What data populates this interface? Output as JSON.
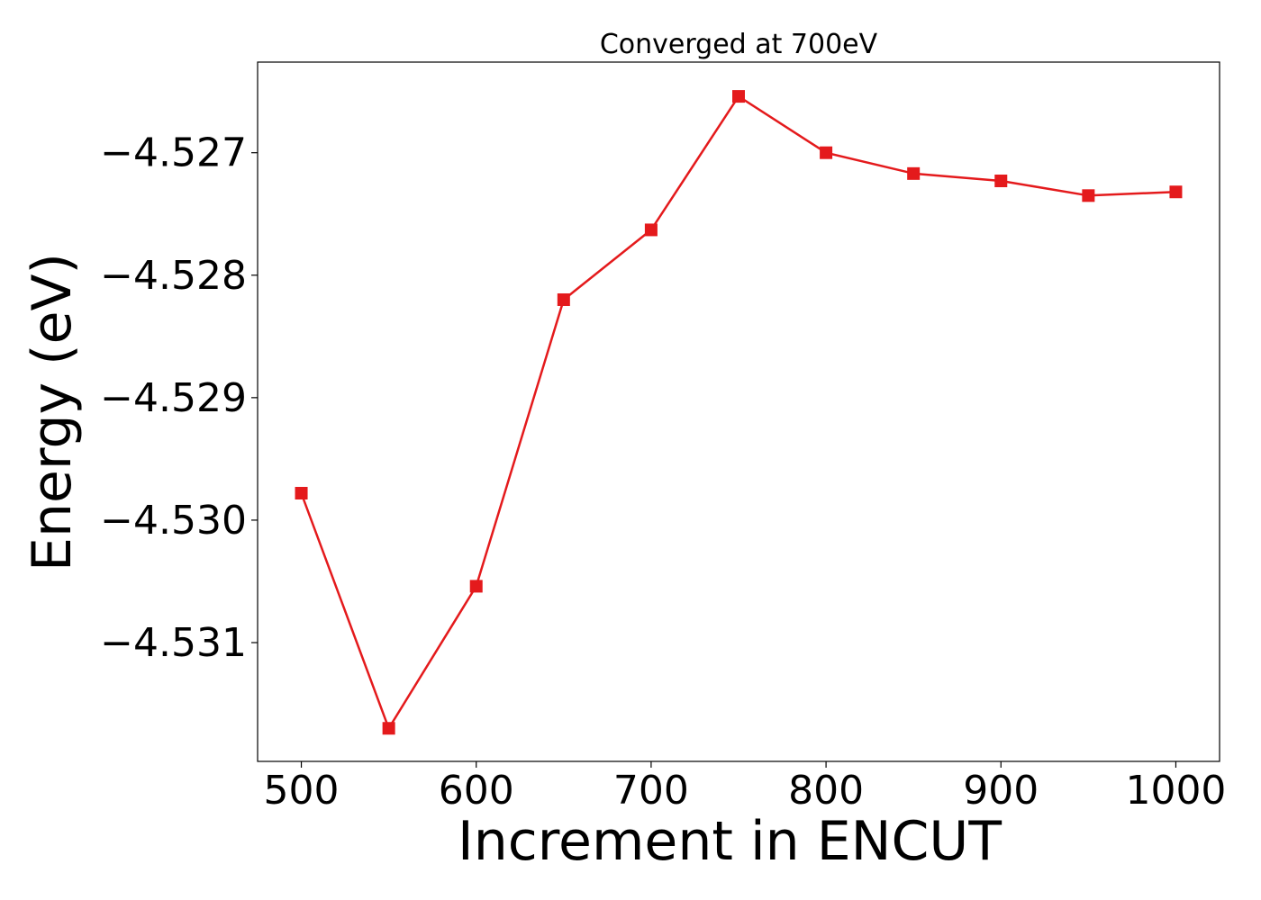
{
  "chart_data": {
    "type": "line",
    "title": "Converged at 700eV",
    "xlabel": "Increment in ENCUT",
    "ylabel": "Energy (eV)",
    "xlim": [
      475,
      1025
    ],
    "ylim": [
      -4.53197,
      -4.52626
    ],
    "xticks": [
      500,
      600,
      700,
      800,
      900,
      1000
    ],
    "xtick_labels": [
      "500",
      "600",
      "700",
      "800",
      "900",
      "1000"
    ],
    "yticks": [
      -4.531,
      -4.53,
      -4.529,
      -4.528,
      -4.527
    ],
    "ytick_labels": [
      "−4.531",
      "−4.530",
      "−4.529",
      "−4.528",
      "−4.527"
    ],
    "grid": false,
    "marker": "square",
    "series": [
      {
        "color": "#e41a1c",
        "x": [
          500,
          550,
          600,
          650,
          700,
          750,
          800,
          850,
          900,
          950,
          1000
        ],
        "y": [
          -4.52978,
          -4.5317,
          -4.53054,
          -4.5282,
          -4.52763,
          -4.52654,
          -4.527,
          -4.52717,
          -4.52723,
          -4.52735,
          -4.52732
        ]
      }
    ]
  }
}
